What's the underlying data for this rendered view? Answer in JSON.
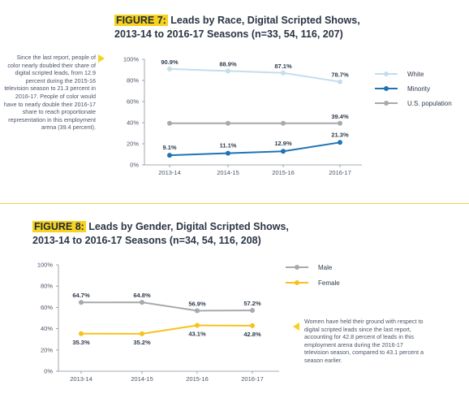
{
  "fig7": {
    "label": "FIGURE 7:",
    "title_line1": "Leads by Race, Digital Scripted Shows,",
    "title_line2": "2013-14 to 2016-17 Seasons (n=33, 54, 116, 207)",
    "annotation": "Since the last report, people of color nearly doubled their share of digital scripted leads, from 12.9 percent during the 2015-16 television season to 21.3 percent in 2016-17. People of color would have to nearly double their 2016-17 share to reach proportionate representation in this employment arena (39.4 percent)."
  },
  "fig8": {
    "label": "FIGURE 8:",
    "title_line1": "Leads by Gender, Digital Scripted Shows,",
    "title_line2": "2013-14 to  2016-17 Seasons (n=34, 54, 116, 208)",
    "annotation": "Women have held their ground with respect to digital scripted leads since the last report, accounting for 42.8 percent of leads in this employment arena during the 2016-17 television season, compared to 43.1 percent a season earlier."
  },
  "chart_data": [
    {
      "type": "line",
      "categories": [
        "2013-14",
        "2014-15",
        "2015-16",
        "2016-17"
      ],
      "series": [
        {
          "name": "White",
          "values": [
            90.9,
            88.9,
            87.1,
            78.7
          ],
          "labels": [
            "90.9%",
            "88.9%",
            "87.1%",
            "78.7%"
          ],
          "color": "#c5ddeb"
        },
        {
          "name": "Minority",
          "values": [
            9.1,
            11.1,
            12.9,
            21.3
          ],
          "labels": [
            "9.1%",
            "11.1%",
            "12.9%",
            "21.3%"
          ],
          "color": "#1f74b5"
        },
        {
          "name": "U.S. population",
          "values": [
            39.4,
            39.4,
            39.4,
            39.4
          ],
          "labels": [
            "",
            "",
            "",
            "39.4%"
          ],
          "color": "#a7a9ac"
        }
      ],
      "yticks": [
        "0%",
        "20%",
        "40%",
        "60%",
        "80%",
        "100%"
      ],
      "ylim": [
        0,
        100
      ],
      "legend": "right",
      "grid": false
    },
    {
      "type": "line",
      "categories": [
        "2013-14",
        "2014-15",
        "2015-16",
        "2016-17"
      ],
      "series": [
        {
          "name": "Male",
          "values": [
            64.7,
            64.8,
            56.9,
            57.2
          ],
          "labels": [
            "64.7%",
            "64.8%",
            "56.9%",
            "57.2%"
          ],
          "color": "#a7a9ac"
        },
        {
          "name": "Female",
          "values": [
            35.3,
            35.2,
            43.1,
            42.8
          ],
          "labels": [
            "35.3%",
            "35.2%",
            "43.1%",
            "42.8%"
          ],
          "color": "#f7c21e"
        }
      ],
      "yticks": [
        "0%",
        "20%",
        "40%",
        "60%",
        "80%",
        "100%"
      ],
      "ylim": [
        0,
        100
      ],
      "legend": "right",
      "grid": false
    }
  ]
}
